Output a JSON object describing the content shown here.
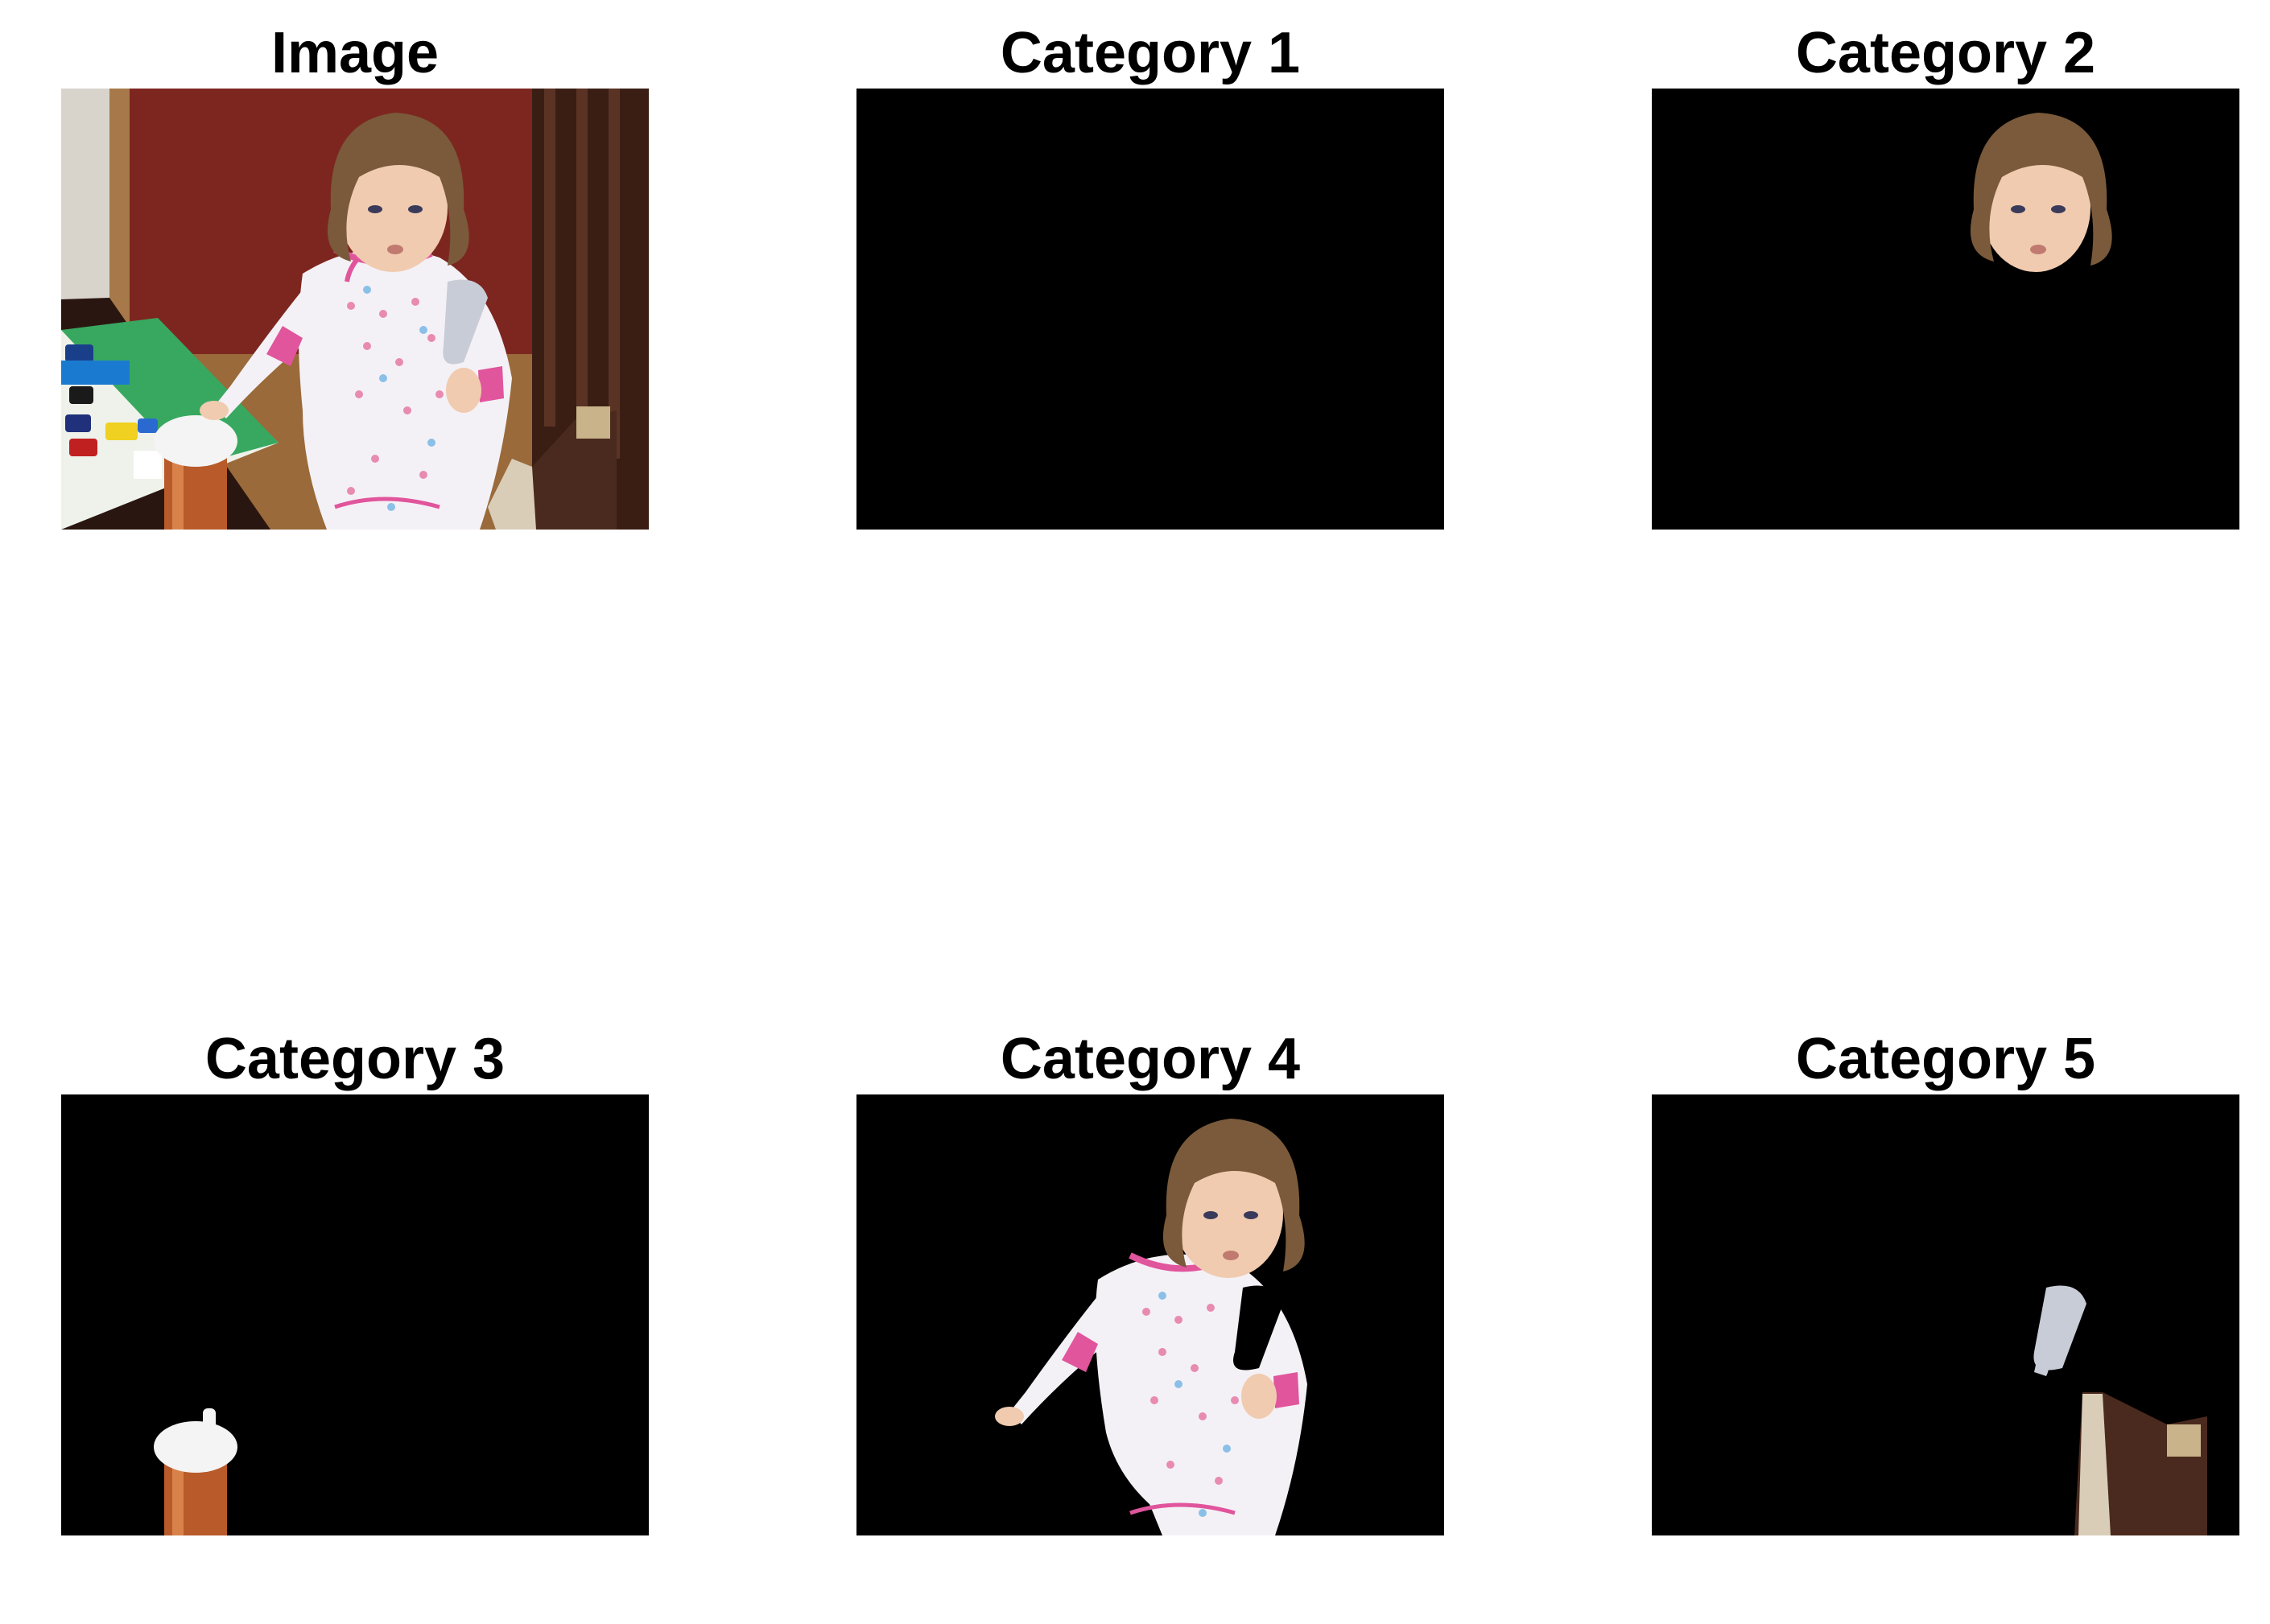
{
  "panels": [
    {
      "title": "Image"
    },
    {
      "title": "Category 1"
    },
    {
      "title": "Category 2"
    },
    {
      "title": "Category 3"
    },
    {
      "title": "Category 4"
    },
    {
      "title": "Category 5"
    }
  ],
  "colors": {
    "background": "#ffffff",
    "mask_background": "#000000",
    "wall": "#8a2a24",
    "shirt": "#f4f1f6",
    "trim": "#e0559c",
    "hair": "#7a5a3a",
    "skin": "#f0cbb0",
    "cup": "#b85a2a",
    "cup_lid": "#f2f2f2",
    "chair": "#4a2a1e",
    "table": "#2a1610"
  }
}
